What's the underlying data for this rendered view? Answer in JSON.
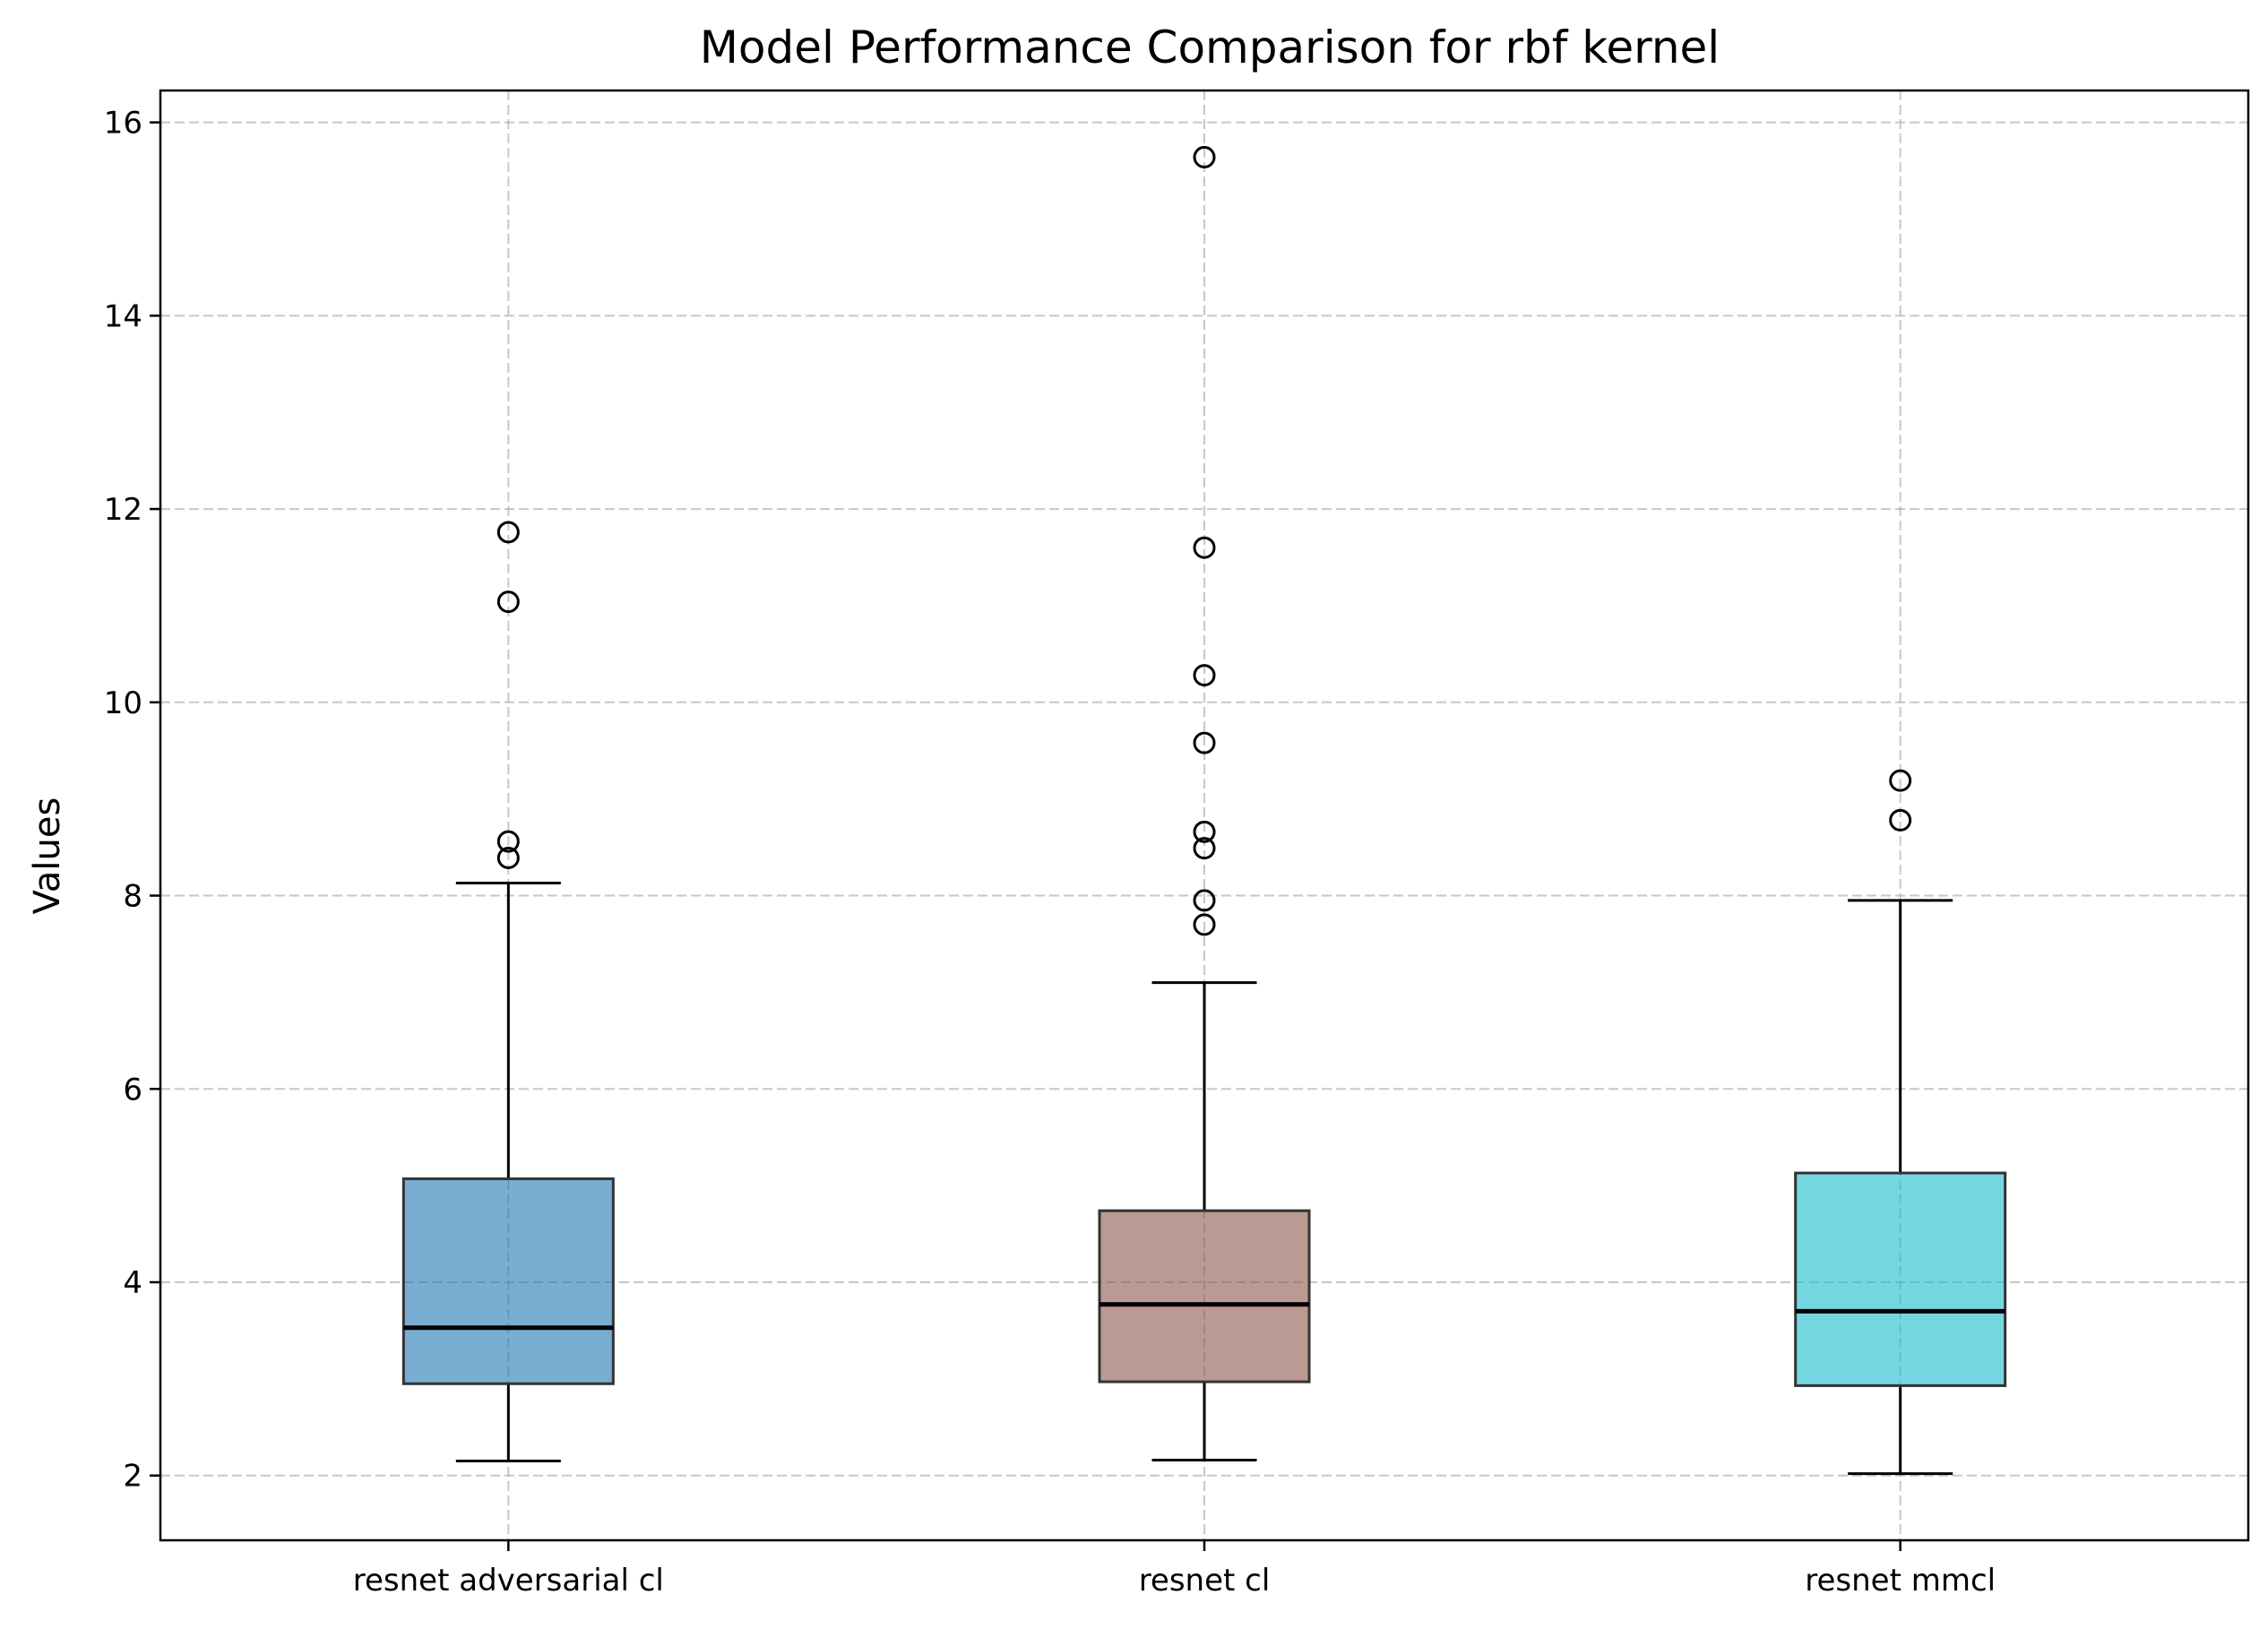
{
  "chart_data": {
    "type": "box",
    "title": "Model Performance Comparison for rbf kernel",
    "xlabel": "",
    "ylabel": "Values",
    "ylim": [
      1.33,
      16.33
    ],
    "yticks": [
      2,
      4,
      6,
      8,
      10,
      12,
      14,
      16
    ],
    "grid": true,
    "categories": [
      "resnet adversarial cl",
      "resnet cl",
      "resnet mmcl"
    ],
    "series": [
      {
        "category": "resnet adversarial cl",
        "color": "#1f77b4",
        "whisker_low": 2.15,
        "q1": 2.95,
        "median": 3.53,
        "q3": 5.07,
        "whisker_high": 8.13,
        "outliers": [
          8.39,
          8.56,
          11.04,
          11.76
        ]
      },
      {
        "category": "resnet cl",
        "color": "#8c564b",
        "whisker_low": 2.16,
        "q1": 2.97,
        "median": 3.77,
        "q3": 4.74,
        "whisker_high": 7.1,
        "outliers": [
          7.7,
          7.95,
          8.49,
          8.66,
          9.58,
          10.28,
          11.6,
          15.64
        ]
      },
      {
        "category": "resnet mmcl",
        "color": "#17becf",
        "whisker_low": 2.02,
        "q1": 2.93,
        "median": 3.7,
        "q3": 5.13,
        "whisker_high": 7.95,
        "outliers": [
          8.78,
          9.19
        ]
      }
    ]
  }
}
